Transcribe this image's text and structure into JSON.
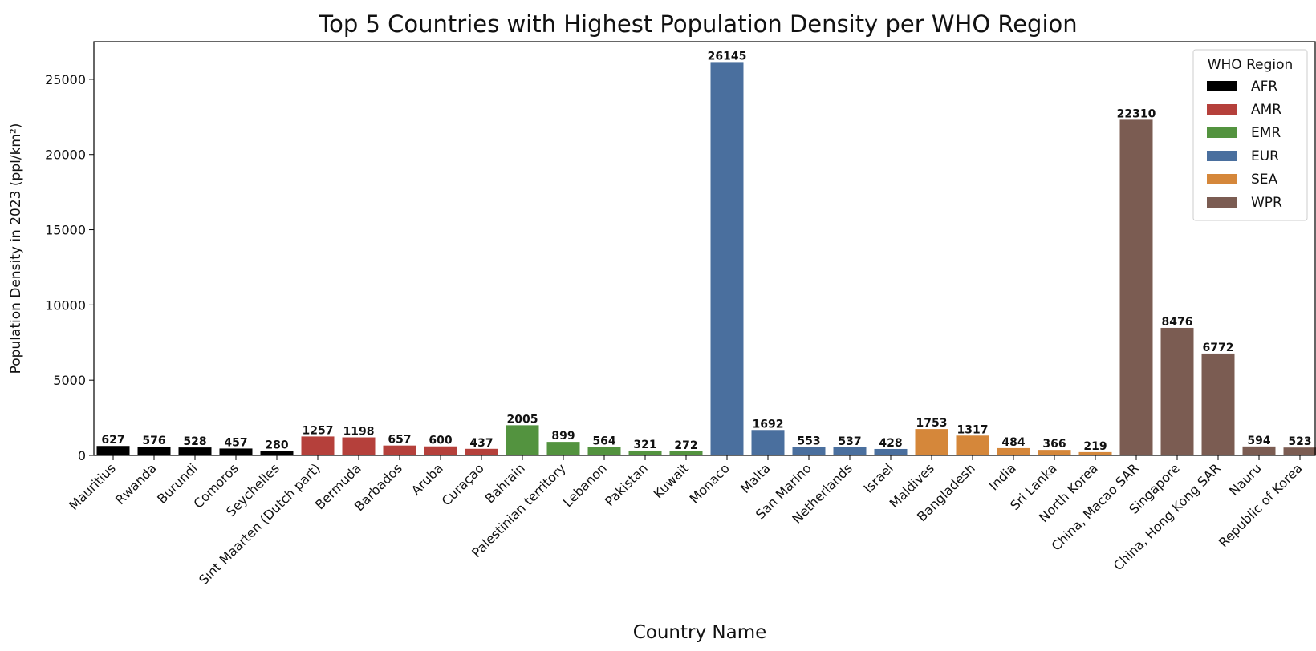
{
  "chart_data": {
    "type": "bar",
    "title": "Top 5 Countries with Highest Population Density per WHO Region",
    "xlabel": "Country Name",
    "ylabel": "Population Density in 2023 (ppl/km²)",
    "ylim": [
      0,
      27500
    ],
    "yticks": [
      0,
      5000,
      10000,
      15000,
      20000,
      25000
    ],
    "grid": false,
    "legend": {
      "title": "WHO Region",
      "placement": "top-right",
      "entries": [
        {
          "name": "AFR",
          "color": "#000000"
        },
        {
          "name": "AMR",
          "color": "#b5403b"
        },
        {
          "name": "EMR",
          "color": "#53933f"
        },
        {
          "name": "EUR",
          "color": "#4a6f9e"
        },
        {
          "name": "SEA",
          "color": "#d5873a"
        },
        {
          "name": "WPR",
          "color": "#7b5c52"
        }
      ]
    },
    "categories": [
      "Mauritius",
      "Rwanda",
      "Burundi",
      "Comoros",
      "Seychelles",
      "Sint Maarten (Dutch part)",
      "Bermuda",
      "Barbados",
      "Aruba",
      "Curaçao",
      "Bahrain",
      "Palestinian territory",
      "Lebanon",
      "Pakistan",
      "Kuwait",
      "Monaco",
      "Malta",
      "San Marino",
      "Netherlands",
      "Israel",
      "Maldives",
      "Bangladesh",
      "India",
      "Sri Lanka",
      "North Korea",
      "China, Macao SAR",
      "Singapore",
      "China, Hong Kong SAR",
      "Nauru",
      "Republic of Korea"
    ],
    "values": [
      627,
      576,
      528,
      457,
      280,
      1257,
      1198,
      657,
      600,
      437,
      2005,
      899,
      564,
      321,
      272,
      26145,
      1692,
      553,
      537,
      428,
      1753,
      1317,
      484,
      366,
      219,
      22310,
      8476,
      6772,
      594,
      523
    ],
    "value_labels": [
      "627",
      "576",
      "528",
      "457",
      "280",
      "1257",
      "1198",
      "657",
      "600",
      "437",
      "2005",
      "899",
      "564",
      "321",
      "272",
      "26145",
      "1692",
      "553",
      "537",
      "428",
      "1753",
      "1317",
      "484",
      "366",
      "219",
      "22310",
      "8476",
      "6772",
      "594",
      "523"
    ],
    "regions": [
      "AFR",
      "AFR",
      "AFR",
      "AFR",
      "AFR",
      "AMR",
      "AMR",
      "AMR",
      "AMR",
      "AMR",
      "EMR",
      "EMR",
      "EMR",
      "EMR",
      "EMR",
      "EUR",
      "EUR",
      "EUR",
      "EUR",
      "EUR",
      "SEA",
      "SEA",
      "SEA",
      "SEA",
      "SEA",
      "WPR",
      "WPR",
      "WPR",
      "WPR",
      "WPR"
    ]
  }
}
